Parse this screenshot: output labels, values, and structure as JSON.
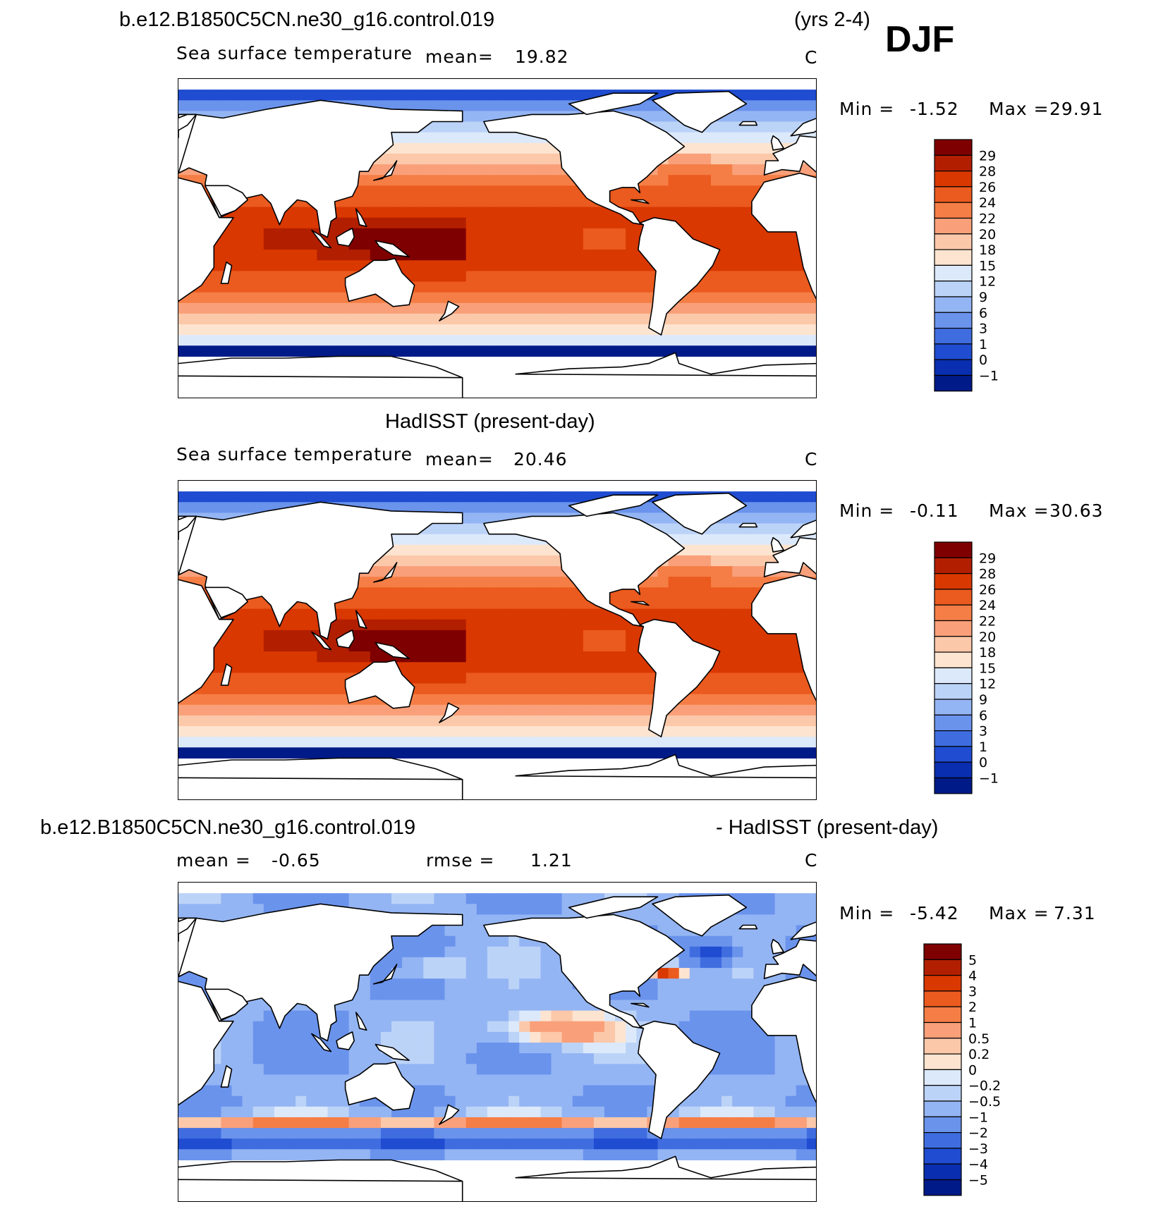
{
  "header": {
    "case_name": "b.e12.B1850C5CN.ne30_g16.control.019",
    "years": "(yrs 2-4)",
    "season": "DJF"
  },
  "panels": [
    {
      "id": "model",
      "variable": "Sea surface temperature",
      "mean_label": "mean=",
      "mean_value": "19.82",
      "units": "C",
      "stats": {
        "min_label": "Min =",
        "min": "-1.52",
        "max_label": "Max =",
        "max": "29.91"
      },
      "colorbar": {
        "labels": [
          "29",
          "28",
          "26",
          "24",
          "22",
          "20",
          "18",
          "15",
          "12",
          "9",
          "6",
          "3",
          "1",
          "0",
          "-1"
        ],
        "colors": [
          "#7f0000",
          "#b21f00",
          "#d93800",
          "#eb5a1e",
          "#f57e46",
          "#f9a07a",
          "#fbc8aa",
          "#fde4d0",
          "#dce9fb",
          "#bcd3f8",
          "#94b5f3",
          "#6a93ec",
          "#3f6de0",
          "#1f4cd0",
          "#0a2eb0",
          "#001a88"
        ]
      }
    },
    {
      "id": "obs",
      "title": "HadISST (present-day)",
      "variable": "Sea surface temperature",
      "mean_label": "mean=",
      "mean_value": "20.46",
      "units": "C",
      "stats": {
        "min_label": "Min =",
        "min": "-0.11",
        "max_label": "Max =",
        "max": "30.63"
      },
      "colorbar": {
        "labels": [
          "29",
          "28",
          "26",
          "24",
          "22",
          "20",
          "18",
          "15",
          "12",
          "9",
          "6",
          "3",
          "1",
          "0",
          "-1"
        ],
        "colors": [
          "#7f0000",
          "#b21f00",
          "#d93800",
          "#eb5a1e",
          "#f57e46",
          "#f9a07a",
          "#fbc8aa",
          "#fde4d0",
          "#dce9fb",
          "#bcd3f8",
          "#94b5f3",
          "#6a93ec",
          "#3f6de0",
          "#1f4cd0",
          "#0a2eb0",
          "#001a88"
        ]
      }
    },
    {
      "id": "diff",
      "title_left": "b.e12.B1850C5CN.ne30_g16.control.019",
      "title_right": "- HadISST (present-day)",
      "mean_label": "mean =",
      "mean_value": "-0.65",
      "rmse_label": "rmse =",
      "rmse_value": "1.21",
      "units": "C",
      "stats": {
        "min_label": "Min =",
        "min": "-5.42",
        "max_label": "Max =",
        "max": "7.31"
      },
      "colorbar": {
        "labels": [
          "5",
          "4",
          "3",
          "2",
          "1",
          "0.5",
          "0.2",
          "0",
          "-0.2",
          "-0.5",
          "-1",
          "-2",
          "-3",
          "-4",
          "-5"
        ],
        "colors": [
          "#7f0000",
          "#b21f00",
          "#d93800",
          "#eb5a1e",
          "#f57e46",
          "#f9a07a",
          "#fbc8aa",
          "#fde4d0",
          "#dce9fb",
          "#bcd3f8",
          "#94b5f3",
          "#6a93ec",
          "#3f6de0",
          "#1f4cd0",
          "#0a2eb0",
          "#001a88"
        ]
      }
    }
  ],
  "chart_data": [
    {
      "type": "heatmap",
      "title": "b.e12.B1850C5CN.ne30_g16.control.019 (yrs 2-4) DJF",
      "subtitle": "Sea surface temperature",
      "units": "C",
      "mean": 19.82,
      "min": -1.52,
      "max": 29.91,
      "contour_levels": [
        -1,
        0,
        1,
        3,
        6,
        9,
        12,
        15,
        18,
        20,
        22,
        24,
        26,
        28,
        29
      ]
    },
    {
      "type": "heatmap",
      "title": "HadISST (present-day)",
      "subtitle": "Sea surface temperature",
      "units": "C",
      "mean": 20.46,
      "min": -0.11,
      "max": 30.63,
      "contour_levels": [
        -1,
        0,
        1,
        3,
        6,
        9,
        12,
        15,
        18,
        20,
        22,
        24,
        26,
        28,
        29
      ]
    },
    {
      "type": "heatmap",
      "title": "b.e12.B1850C5CN.ne30_g16.control.019 - HadISST (present-day)",
      "units": "C",
      "mean": -0.65,
      "rmse": 1.21,
      "min": -5.42,
      "max": 7.31,
      "contour_levels": [
        -5,
        -4,
        -3,
        -2,
        -1,
        -0.5,
        -0.2,
        0,
        0.2,
        0.5,
        1,
        2,
        3,
        4,
        5
      ]
    }
  ]
}
